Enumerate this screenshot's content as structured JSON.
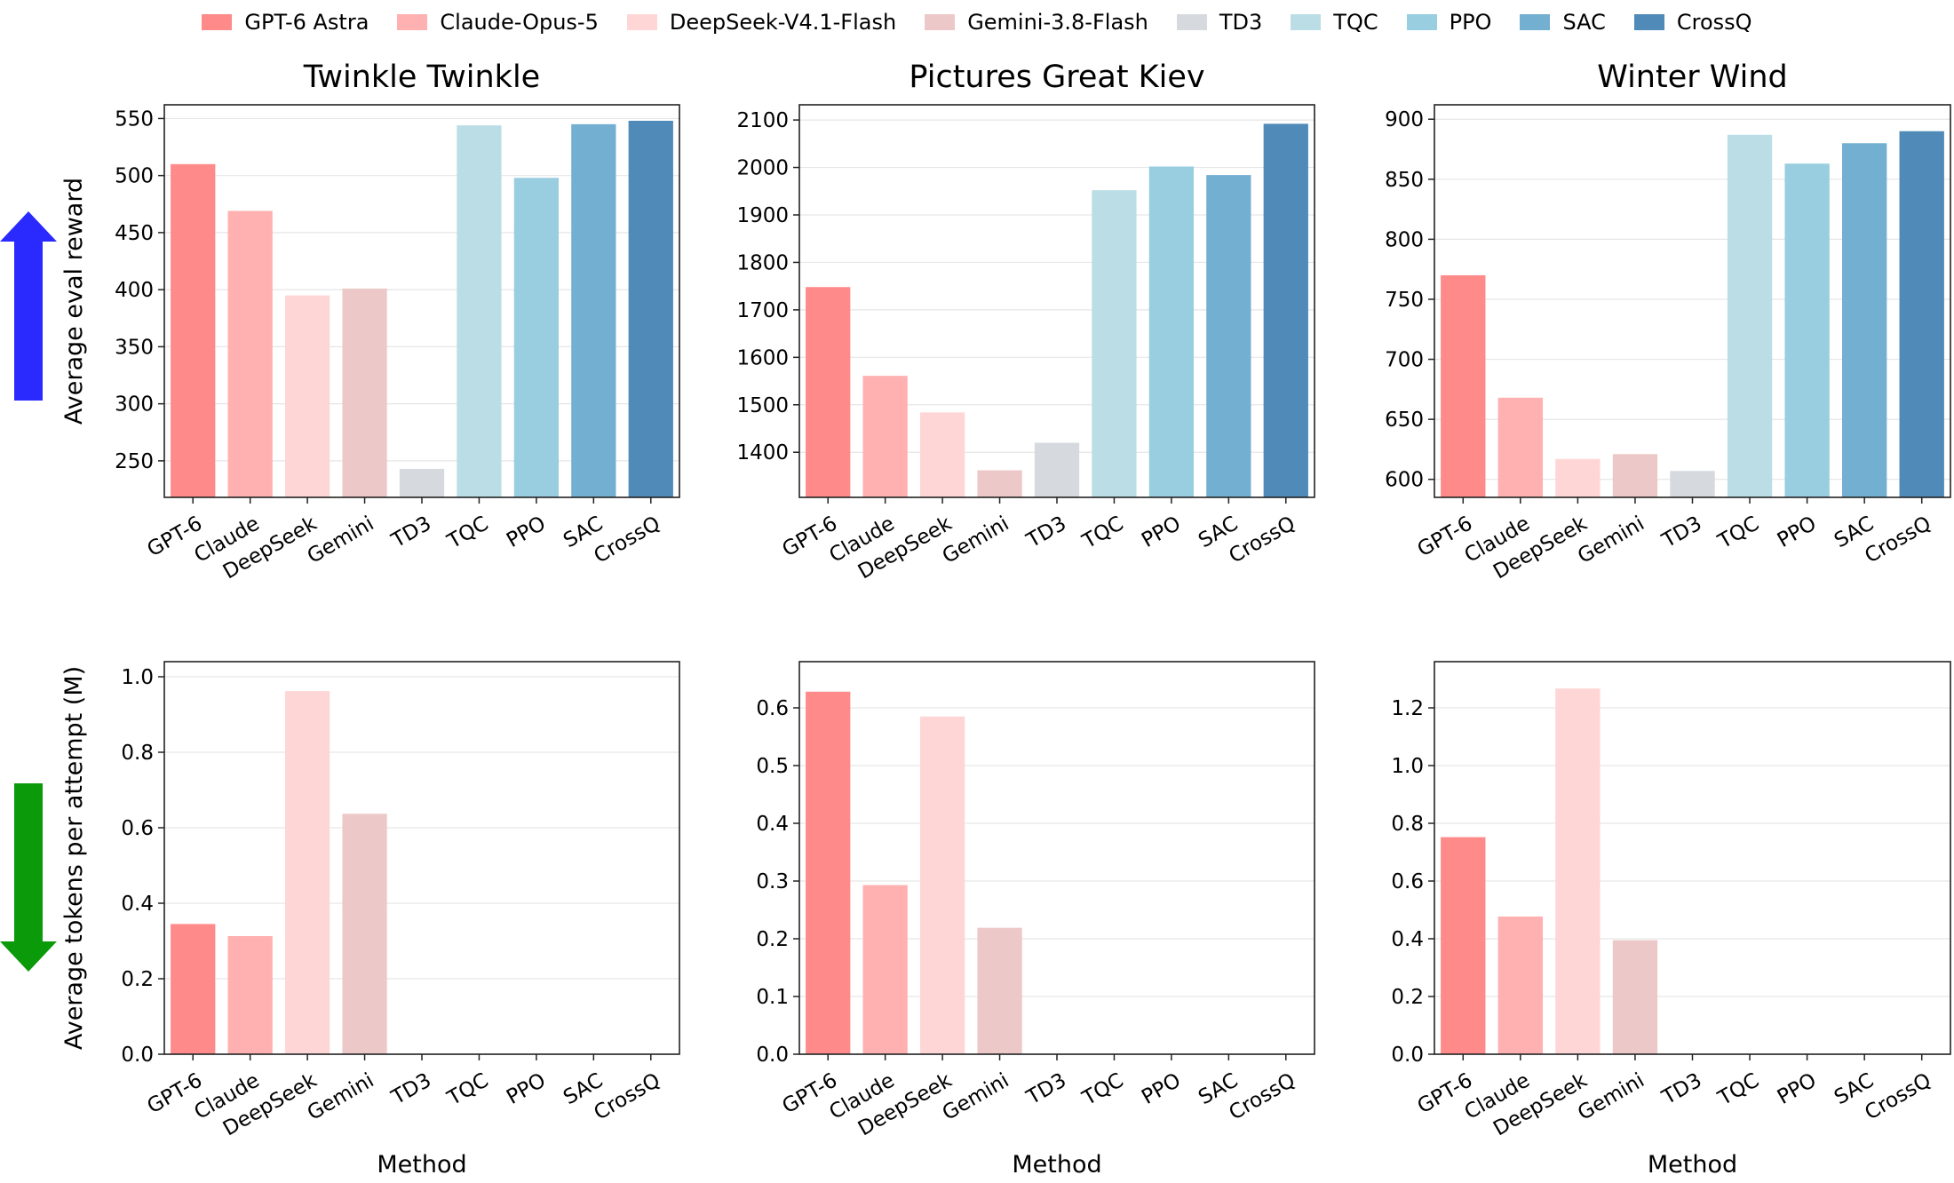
{
  "legend": [
    {
      "label": "GPT-6 Astra",
      "color": "#FF8A8A"
    },
    {
      "label": "Claude-Opus-5",
      "color": "#FFB0B0"
    },
    {
      "label": "DeepSeek-V4.1-Flash",
      "color": "#FFD6D6"
    },
    {
      "label": "Gemini-3.8-Flash",
      "color": "#EDC8C8"
    },
    {
      "label": "TD3",
      "color": "#D6D9DE"
    },
    {
      "label": "TQC",
      "color": "#BBDEE6"
    },
    {
      "label": "PPO",
      "color": "#98CEE0"
    },
    {
      "label": "SAC",
      "color": "#73AFD1"
    },
    {
      "label": "CrossQ",
      "color": "#4F8AB8"
    }
  ],
  "arrows": {
    "up_color": "#2A2AFF",
    "down_color": "#0A9A0A"
  },
  "chart_data": [
    {
      "type": "bar",
      "title": "Twinkle Twinkle",
      "xlabel": "",
      "ylabel": "Average eval reward",
      "categories": [
        "GPT-6",
        "Claude",
        "DeepSeek",
        "Gemini",
        "TD3",
        "TQC",
        "PPO",
        "SAC",
        "CrossQ"
      ],
      "values": [
        510,
        469,
        395,
        401,
        243,
        544,
        498,
        545,
        548
      ],
      "ylim": [
        218,
        562
      ],
      "yticks": [
        250,
        300,
        350,
        400,
        450,
        500,
        550
      ],
      "tick_labels": [
        "250",
        "300",
        "350",
        "400",
        "450",
        "500",
        "550"
      ],
      "grid": true
    },
    {
      "type": "bar",
      "title": "Pictures Great Kiev",
      "xlabel": "",
      "ylabel": "",
      "categories": [
        "GPT-6",
        "Claude",
        "DeepSeek",
        "Gemini",
        "TD3",
        "TQC",
        "PPO",
        "SAC",
        "CrossQ"
      ],
      "values": [
        1748,
        1561,
        1484,
        1362,
        1420,
        1952,
        2002,
        1984,
        2092
      ],
      "ylim": [
        1305,
        2132
      ],
      "yticks": [
        1400,
        1500,
        1600,
        1700,
        1800,
        1900,
        2000,
        2100
      ],
      "tick_labels": [
        "1400",
        "1500",
        "1600",
        "1700",
        "1800",
        "1900",
        "2000",
        "2100"
      ],
      "grid": true
    },
    {
      "type": "bar",
      "title": "Winter Wind",
      "xlabel": "",
      "ylabel": "",
      "categories": [
        "GPT-6",
        "Claude",
        "DeepSeek",
        "Gemini",
        "TD3",
        "TQC",
        "PPO",
        "SAC",
        "CrossQ"
      ],
      "values": [
        770,
        668,
        617,
        621,
        607,
        887,
        863,
        880,
        890
      ],
      "ylim": [
        585,
        912
      ],
      "yticks": [
        600,
        650,
        700,
        750,
        800,
        850,
        900
      ],
      "tick_labels": [
        "600",
        "650",
        "700",
        "750",
        "800",
        "850",
        "900"
      ],
      "grid": true
    },
    {
      "type": "bar",
      "title": "",
      "xlabel": "Method",
      "ylabel": "Average tokens per attempt (M)",
      "categories": [
        "GPT-6",
        "Claude",
        "DeepSeek",
        "Gemini",
        "TD3",
        "TQC",
        "PPO",
        "SAC",
        "CrossQ"
      ],
      "values": [
        0.345,
        0.313,
        0.962,
        0.637,
        0,
        0,
        0,
        0,
        0
      ],
      "ylim": [
        0,
        1.04
      ],
      "yticks": [
        0,
        0.2,
        0.4,
        0.6,
        0.8,
        1.0
      ],
      "tick_labels": [
        "0.0",
        "0.2",
        "0.4",
        "0.6",
        "0.8",
        "1.0"
      ],
      "grid": true
    },
    {
      "type": "bar",
      "title": "",
      "xlabel": "Method",
      "ylabel": "",
      "categories": [
        "GPT-6",
        "Claude",
        "DeepSeek",
        "Gemini",
        "TD3",
        "TQC",
        "PPO",
        "SAC",
        "CrossQ"
      ],
      "values": [
        0.628,
        0.293,
        0.585,
        0.219,
        0,
        0,
        0,
        0,
        0
      ],
      "ylim": [
        0,
        0.68
      ],
      "yticks": [
        0,
        0.1,
        0.2,
        0.3,
        0.4,
        0.5,
        0.6
      ],
      "tick_labels": [
        "0.0",
        "0.1",
        "0.2",
        "0.3",
        "0.4",
        "0.5",
        "0.6"
      ],
      "grid": true
    },
    {
      "type": "bar",
      "title": "",
      "xlabel": "Method",
      "ylabel": "",
      "categories": [
        "GPT-6",
        "Claude",
        "DeepSeek",
        "Gemini",
        "TD3",
        "TQC",
        "PPO",
        "SAC",
        "CrossQ"
      ],
      "values": [
        0.752,
        0.477,
        1.267,
        0.395,
        0,
        0,
        0,
        0,
        0
      ],
      "ylim": [
        0,
        1.36
      ],
      "yticks": [
        0,
        0.2,
        0.4,
        0.6,
        0.8,
        1.0,
        1.2
      ],
      "tick_labels": [
        "0.0",
        "0.2",
        "0.4",
        "0.6",
        "0.8",
        "1.0",
        "1.2"
      ],
      "grid": true
    }
  ]
}
